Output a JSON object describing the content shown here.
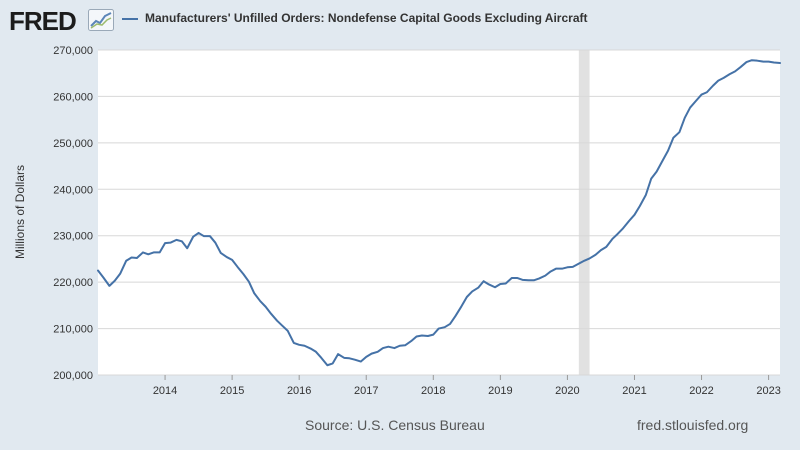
{
  "header": {
    "logo_text": "FRED",
    "logo_icon": "line-chart-icon",
    "legend_label": "Manufacturers' Unfilled Orders: Nondefense Capital Goods Excluding Aircraft"
  },
  "footer": {
    "source": "Source: U.S. Census Bureau",
    "site": "fred.stlouisfed.org"
  },
  "colors": {
    "background": "#e1e9f0",
    "plot_background": "#ffffff",
    "series_line": "#4572a7",
    "recession_band": "#e1e1e1",
    "gridline": "#d8d8d8"
  },
  "chart_data": {
    "type": "line",
    "title": "Manufacturers' Unfilled Orders: Nondefense Capital Goods Excluding Aircraft",
    "xlabel": "",
    "ylabel": "Millions of Dollars",
    "xlim": [
      2013.0,
      2023.17
    ],
    "ylim": [
      200000,
      270000
    ],
    "x_ticks": [
      2014,
      2015,
      2016,
      2017,
      2018,
      2019,
      2020,
      2021,
      2022,
      2023
    ],
    "y_ticks": [
      200000,
      210000,
      220000,
      230000,
      240000,
      250000,
      260000,
      270000
    ],
    "y_tick_labels": [
      "200,000",
      "210,000",
      "220,000",
      "230,000",
      "240,000",
      "250,000",
      "260,000",
      "270,000"
    ],
    "grid": "horizontal",
    "legend_position": "top",
    "recession_shading": [
      [
        2020.17,
        2020.33
      ]
    ],
    "series": [
      {
        "name": "Manufacturers' Unfilled Orders: Nondefense Capital Goods Excluding Aircraft",
        "x": [
          2013.0,
          2013.08,
          2013.17,
          2013.25,
          2013.33,
          2013.42,
          2013.5,
          2013.58,
          2013.67,
          2013.75,
          2013.83,
          2013.92,
          2014.0,
          2014.08,
          2014.17,
          2014.25,
          2014.33,
          2014.42,
          2014.5,
          2014.58,
          2014.67,
          2014.75,
          2014.83,
          2014.92,
          2015.0,
          2015.08,
          2015.17,
          2015.25,
          2015.33,
          2015.42,
          2015.5,
          2015.58,
          2015.67,
          2015.75,
          2015.83,
          2015.92,
          2016.0,
          2016.08,
          2016.17,
          2016.25,
          2016.33,
          2016.42,
          2016.5,
          2016.58,
          2016.67,
          2016.75,
          2016.83,
          2016.92,
          2017.0,
          2017.08,
          2017.17,
          2017.25,
          2017.33,
          2017.42,
          2017.5,
          2017.58,
          2017.67,
          2017.75,
          2017.83,
          2017.92,
          2018.0,
          2018.08,
          2018.17,
          2018.25,
          2018.33,
          2018.42,
          2018.5,
          2018.58,
          2018.67,
          2018.75,
          2018.83,
          2018.92,
          2019.0,
          2019.08,
          2019.17,
          2019.25,
          2019.33,
          2019.42,
          2019.5,
          2019.58,
          2019.67,
          2019.75,
          2019.83,
          2019.92,
          2020.0,
          2020.08,
          2020.17,
          2020.25,
          2020.33,
          2020.42,
          2020.5,
          2020.58,
          2020.67,
          2020.75,
          2020.83,
          2020.92,
          2021.0,
          2021.08,
          2021.17,
          2021.25,
          2021.33,
          2021.42,
          2021.5,
          2021.58,
          2021.67,
          2021.75,
          2021.83,
          2021.92,
          2022.0,
          2022.08,
          2022.17,
          2022.25,
          2022.33,
          2022.42,
          2022.5,
          2022.58,
          2022.67,
          2022.75,
          2022.83,
          2022.92,
          2023.0,
          2023.08,
          2023.17
        ],
        "values": [
          222500,
          221000,
          219200,
          220300,
          221800,
          224600,
          225300,
          225200,
          226400,
          226000,
          226400,
          226400,
          228400,
          228500,
          229100,
          228800,
          227300,
          229800,
          230600,
          229900,
          229900,
          228500,
          226300,
          225400,
          224800,
          223300,
          221700,
          220100,
          217600,
          215900,
          214700,
          213200,
          211700,
          210600,
          209500,
          206900,
          206500,
          206300,
          205700,
          205000,
          203700,
          202100,
          202500,
          204500,
          203700,
          203600,
          203300,
          202900,
          203900,
          204600,
          205000,
          205800,
          206100,
          205800,
          206300,
          206400,
          207300,
          208300,
          208500,
          208400,
          208700,
          210000,
          210300,
          211000,
          212700,
          214800,
          216800,
          218000,
          218800,
          220200,
          219500,
          218900,
          219600,
          219700,
          220900,
          220900,
          220500,
          220400,
          220400,
          220800,
          221400,
          222300,
          222900,
          222900,
          223200,
          223300,
          224000,
          224600,
          225100,
          225900,
          226900,
          227600,
          229300,
          230400,
          231600,
          233200,
          234500,
          236400,
          238800,
          242300,
          243800,
          246200,
          248300,
          251100,
          252300,
          255400,
          257600,
          259100,
          260400,
          260900,
          262300,
          263400,
          264000,
          264800,
          265400,
          266300,
          267400,
          267800,
          267700,
          267500,
          267500,
          267300,
          267200
        ]
      }
    ]
  }
}
